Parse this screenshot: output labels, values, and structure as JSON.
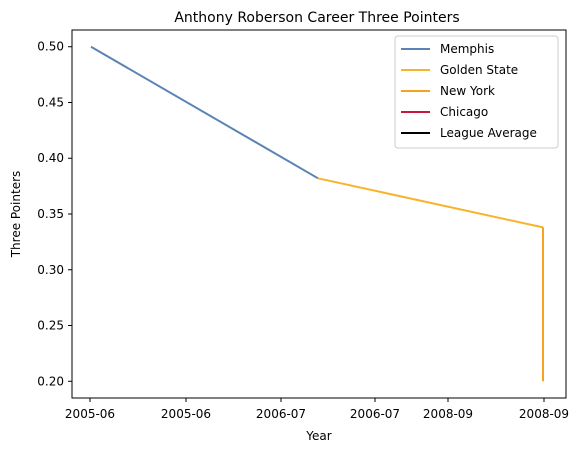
{
  "chart_data": {
    "type": "line",
    "title": "Anthony Roberson Career Three Pointers",
    "xlabel": "Year",
    "ylabel": "Three Pointers",
    "x_tick_labels": [
      "2005-06",
      "2005-06",
      "2006-07",
      "2006-07",
      "2008-09",
      "2008-09"
    ],
    "y_ticks": [
      "0.20",
      "0.25",
      "0.30",
      "0.35",
      "0.40",
      "0.45",
      "0.50"
    ],
    "ylim": [
      0.185,
      0.515
    ],
    "grid": false,
    "legend_placement": "top-right",
    "series": [
      {
        "name": "Memphis",
        "color": "#5b84b5",
        "x": [
          "2005-06",
          "2006-07"
        ],
        "y": [
          0.5,
          0.382
        ]
      },
      {
        "name": "Golden State",
        "color": "#f9b32a",
        "x": [
          "2006-07",
          "2008-09"
        ],
        "y": [
          0.382,
          0.338
        ]
      },
      {
        "name": "New York",
        "color": "#f6a21e",
        "x": [
          "2008-09",
          "2008-09"
        ],
        "y": [
          0.338,
          0.2
        ]
      },
      {
        "name": "Chicago",
        "color": "#c8173e",
        "x": [],
        "y": []
      },
      {
        "name": "League Average",
        "color": "#000000",
        "x": [],
        "y": []
      }
    ]
  }
}
